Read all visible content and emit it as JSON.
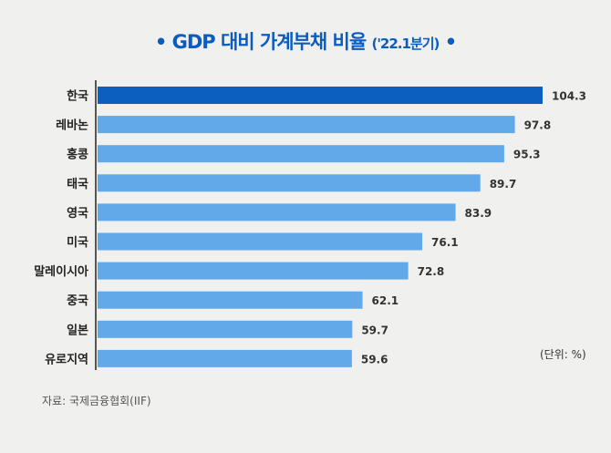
{
  "chart_data": {
    "type": "bar",
    "orientation": "horizontal",
    "title": "GDP 대비 가계부채 비율",
    "subtitle": "('22.1분기)",
    "categories": [
      "한국",
      "레바논",
      "홍콩",
      "태국",
      "영국",
      "미국",
      "말레이시아",
      "중국",
      "일본",
      "유로지역"
    ],
    "values": [
      104.3,
      97.8,
      95.3,
      89.7,
      83.9,
      76.1,
      72.8,
      62.1,
      59.7,
      59.6
    ],
    "data_labels": [
      "104.3",
      "97.8",
      "95.3",
      "89.7",
      "83.9",
      "76.1",
      "72.8",
      "62.1",
      "59.7",
      "59.6"
    ],
    "unit_note": "(단위: %)",
    "source": "자료: 국제금융협회(IIF)",
    "grid": false,
    "colors": {
      "highlight": "#0d5fbf",
      "default": "#62a9e9"
    },
    "highlight_index": 0
  }
}
